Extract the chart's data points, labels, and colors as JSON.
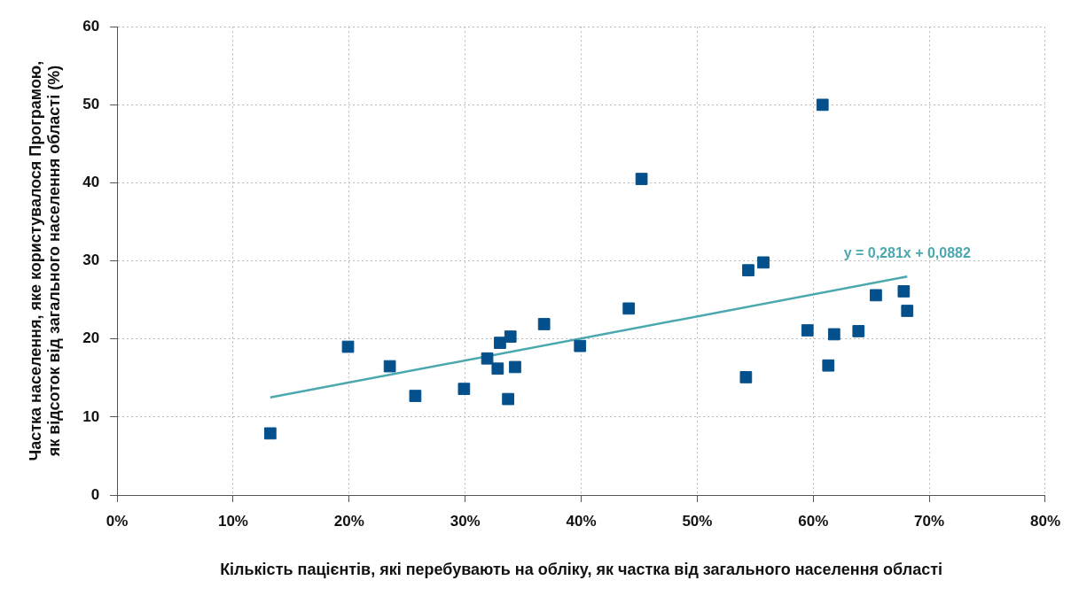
{
  "chart_data": {
    "type": "scatter",
    "xlabel": "Кількість пацієнтів, які перебувають на обліку, як частка від загального населення області",
    "ylabel": "Частка населення, яке користувалося Програмою, як відсоток від загального населення області (%)",
    "xlim": [
      0,
      80
    ],
    "xticks": [
      {
        "value": 0,
        "label": "0%"
      },
      {
        "value": 10,
        "label": "10%"
      },
      {
        "value": 20,
        "label": "20%"
      },
      {
        "value": 30,
        "label": "30%"
      },
      {
        "value": 40,
        "label": "40%"
      },
      {
        "value": 50,
        "label": "50%"
      },
      {
        "value": 60,
        "label": "60%"
      },
      {
        "value": 70,
        "label": "70%"
      },
      {
        "value": 80,
        "label": "80%"
      }
    ],
    "ylim": [
      0,
      60
    ],
    "yticks": [
      0,
      10,
      20,
      30,
      40,
      50,
      60
    ],
    "grid": true,
    "legend": false,
    "series": [
      {
        "type": "scatter",
        "marker": "square",
        "color": "#03508c",
        "x": [
          13.2,
          19.9,
          23.5,
          25.7,
          29.9,
          31.9,
          32.8,
          33.0,
          33.9,
          33.7,
          34.3,
          36.8,
          39.9,
          44.1,
          45.2,
          54.2,
          54.4,
          55.7,
          59.5,
          60.8,
          61.3,
          61.8,
          63.9,
          65.4,
          67.8,
          68.1
        ],
        "values": [
          7.9,
          19.0,
          16.5,
          12.7,
          13.6,
          17.5,
          16.2,
          19.5,
          20.3,
          12.3,
          16.4,
          21.9,
          19.1,
          23.9,
          40.5,
          15.1,
          28.8,
          29.8,
          21.1,
          50.0,
          16.6,
          20.6,
          21.0,
          25.6,
          26.1,
          23.6
        ]
      },
      {
        "type": "line",
        "marker": "none",
        "color": "#4aa8ae",
        "x": [
          13.2,
          68.1
        ],
        "values": [
          12.5,
          28.0
        ]
      }
    ],
    "annotations": [
      "y = 0,281x + 0,0882"
    ]
  }
}
